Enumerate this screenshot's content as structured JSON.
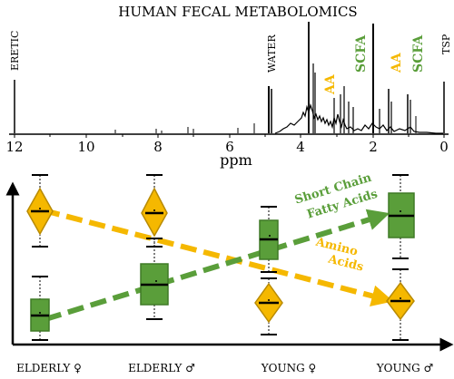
{
  "title": "HUMAN FECAL METABOLOMICS",
  "colors": {
    "aa": "#f5b800",
    "aa_dark": "#b88a00",
    "scfa": "#5a9e3a",
    "scfa_dark": "#3f7a26",
    "black": "#000000"
  },
  "spectrum": {
    "axis_label": "ppm",
    "x_ticks": [
      "12",
      "10",
      "8",
      "6",
      "4",
      "2",
      "0"
    ],
    "peak_labels": {
      "eretic": "ERETIC",
      "water": "WATER",
      "scfa_1": "SCFA",
      "aa_1": "AA",
      "aa_2": "AA",
      "scfa_2": "SCFA",
      "tsp": "TSP"
    }
  },
  "boxplot": {
    "groups": [
      "ELDERLY ♀",
      "ELDERLY ♂",
      "YOUNG ♀",
      "YOUNG ♂"
    ],
    "trend_labels": {
      "scfa_line1": "Short Chain",
      "scfa_line2": "Fatty Acids",
      "aa_line1": "Amino",
      "aa_line2": "Acids"
    }
  }
}
